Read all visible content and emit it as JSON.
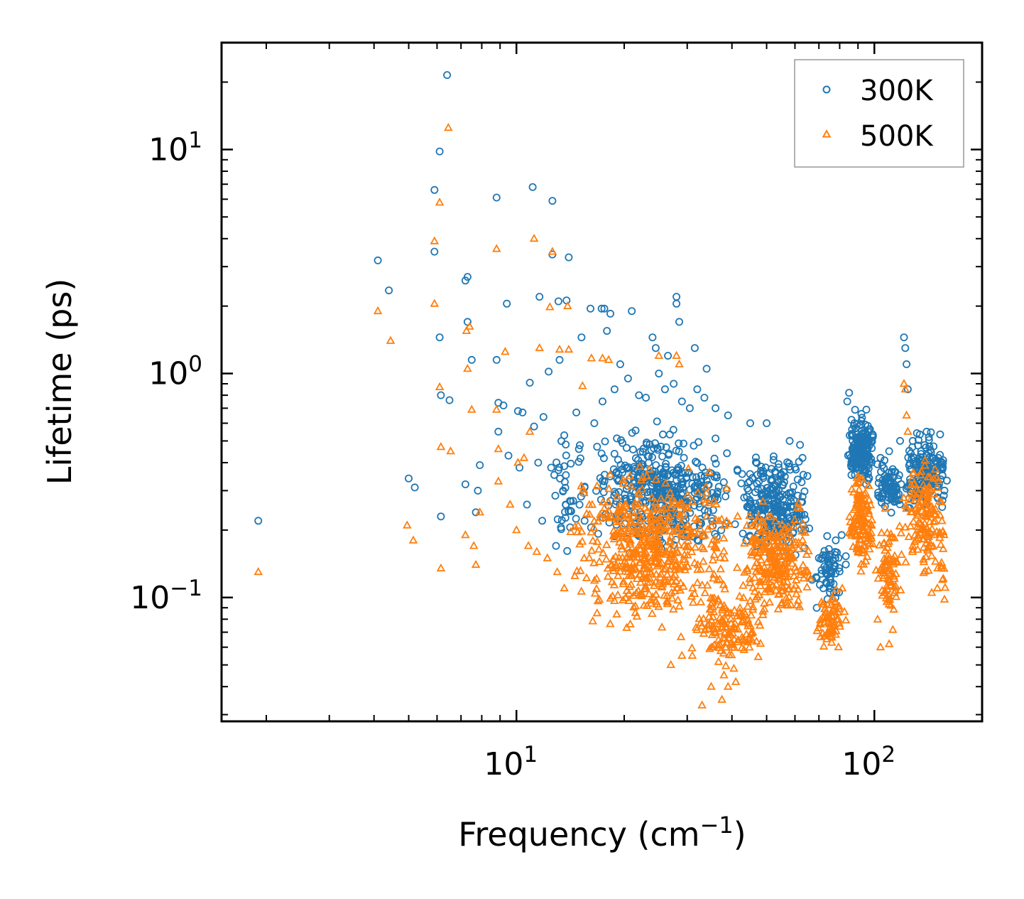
{
  "chart_data": {
    "type": "scatter",
    "xscale": "log",
    "yscale": "log",
    "xlim": [
      1.5,
      200
    ],
    "ylim": [
      0.028,
      30
    ],
    "xlabel": "Frequency (cm",
    "xlabel_sup": "−1",
    "xlabel_end": ")",
    "ylabel": "Lifetime (ps)",
    "x_ticks": [
      {
        "value": 10,
        "base": "10",
        "exp": "1"
      },
      {
        "value": 100,
        "base": "10",
        "exp": "2"
      }
    ],
    "y_ticks": [
      {
        "value": 0.1,
        "base": "10",
        "exp": "−1"
      },
      {
        "value": 1,
        "base": "10",
        "exp": "0"
      },
      {
        "value": 10,
        "base": "10",
        "exp": "1"
      }
    ],
    "legend_position": "top-right",
    "series": [
      {
        "name": "300K",
        "marker": "circle",
        "color": "#1f77b4",
        "points": [
          [
            1.9,
            0.22
          ],
          [
            4.1,
            3.2
          ],
          [
            4.4,
            2.35
          ],
          [
            5.0,
            0.34
          ],
          [
            5.2,
            0.31
          ],
          [
            5.9,
            6.6
          ],
          [
            5.9,
            3.5
          ],
          [
            6.1,
            9.8
          ],
          [
            6.1,
            1.45
          ],
          [
            6.15,
            0.8
          ],
          [
            6.15,
            0.23
          ],
          [
            6.4,
            21.5
          ],
          [
            6.5,
            0.76
          ],
          [
            7.2,
            2.6
          ],
          [
            7.3,
            2.7
          ],
          [
            7.3,
            1.7
          ],
          [
            7.5,
            1.15
          ],
          [
            7.2,
            0.32
          ],
          [
            7.7,
            0.24
          ],
          [
            7.8,
            0.3
          ],
          [
            7.9,
            0.39
          ],
          [
            8.8,
            6.1
          ],
          [
            8.8,
            1.15
          ],
          [
            8.9,
            0.74
          ],
          [
            8.9,
            0.55
          ],
          [
            9.2,
            0.72
          ],
          [
            9.4,
            2.05
          ],
          [
            10.1,
            0.68
          ],
          [
            10.4,
            0.67
          ],
          [
            10.9,
            0.91
          ],
          [
            11.1,
            6.8
          ],
          [
            11.2,
            0.58
          ],
          [
            11.6,
            2.2
          ],
          [
            11.9,
            0.64
          ],
          [
            12.3,
            1.02
          ],
          [
            12.6,
            5.9
          ],
          [
            12.6,
            3.4
          ],
          [
            13.1,
            2.1
          ],
          [
            13.2,
            1.15
          ],
          [
            13.6,
            0.53
          ],
          [
            13.8,
            2.12
          ],
          [
            14.0,
            3.3
          ],
          [
            14.7,
            0.67
          ],
          [
            15.2,
            1.45
          ],
          [
            16.1,
            1.95
          ],
          [
            17.3,
            1.95
          ],
          [
            17.6,
            1.95
          ],
          [
            17.9,
            1.55
          ],
          [
            18.3,
            1.85
          ],
          [
            21.0,
            1.9
          ],
          [
            24.0,
            1.45
          ],
          [
            24.5,
            1.3
          ],
          [
            26.5,
            1.2
          ],
          [
            28.0,
            2.2
          ],
          [
            28.0,
            2.05
          ],
          [
            28.5,
            1.7
          ],
          [
            31.5,
            1.3
          ],
          [
            34.0,
            1.05
          ],
          [
            39.0,
            0.65
          ],
          [
            45.0,
            0.6
          ],
          [
            50.0,
            0.6
          ],
          [
            58.0,
            0.5
          ],
          [
            62.0,
            0.48
          ],
          [
            9.5,
            0.43
          ],
          [
            10.2,
            0.38
          ],
          [
            11.5,
            0.4
          ],
          [
            12.5,
            0.38
          ],
          [
            13.5,
            0.3
          ],
          [
            10.7,
            0.26
          ],
          [
            11.8,
            0.22
          ],
          [
            12.9,
            0.17
          ],
          [
            14.4,
            0.27
          ],
          [
            15.5,
            0.22
          ],
          [
            16.5,
            0.6
          ],
          [
            17.4,
            0.75
          ],
          [
            18.8,
            0.85
          ],
          [
            19.5,
            1.1
          ],
          [
            20.5,
            0.95
          ],
          [
            22.0,
            0.8
          ],
          [
            23.0,
            0.78
          ],
          [
            25.0,
            1.0
          ],
          [
            26.0,
            0.85
          ],
          [
            27.5,
            0.9
          ],
          [
            29.0,
            0.75
          ],
          [
            30.5,
            0.7
          ],
          [
            32.0,
            0.85
          ],
          [
            33.5,
            0.78
          ],
          [
            36.0,
            0.7
          ],
          [
            84.0,
            0.75
          ],
          [
            85.0,
            0.82
          ],
          [
            88.0,
            0.6
          ],
          [
            92.0,
            0.66
          ],
          [
            95.0,
            0.69
          ],
          [
            98.0,
            0.5
          ],
          [
            104.0,
            0.42
          ],
          [
            110.0,
            0.45
          ],
          [
            118.0,
            0.5
          ],
          [
            121.0,
            1.45
          ],
          [
            122.0,
            1.3
          ],
          [
            123.0,
            1.1
          ],
          [
            124.0,
            0.85
          ],
          [
            128.0,
            0.5
          ],
          [
            135.0,
            0.45
          ],
          [
            140.0,
            0.55
          ],
          [
            142.0,
            0.52
          ],
          [
            145.0,
            0.42
          ],
          [
            150.0,
            0.28
          ],
          [
            155.0,
            0.35
          ],
          [
            157.0,
            0.3
          ],
          [
            60.0,
            0.38
          ],
          [
            63.0,
            0.42
          ],
          [
            67.0,
            0.12
          ],
          [
            69.0,
            0.09
          ],
          [
            72.0,
            0.11
          ],
          [
            75.0,
            0.14
          ],
          [
            78.0,
            0.18
          ],
          [
            81.0,
            0.19
          ],
          [
            70.0,
            0.15
          ]
        ],
        "clusters": [
          {
            "x": [
              16,
              40
            ],
            "y": [
              0.14,
              0.65
            ],
            "n": 420
          },
          {
            "x": [
              40,
              68
            ],
            "y": [
              0.13,
              0.5
            ],
            "n": 260
          },
          {
            "x": [
              12,
              16
            ],
            "y": [
              0.15,
              0.6
            ],
            "n": 40
          },
          {
            "x": [
              68,
              84
            ],
            "y": [
              0.09,
              0.2
            ],
            "n": 60
          },
          {
            "x": [
              84,
              100
            ],
            "y": [
              0.3,
              0.72
            ],
            "n": 180
          },
          {
            "x": [
              100,
              120
            ],
            "y": [
              0.22,
              0.45
            ],
            "n": 80
          },
          {
            "x": [
              120,
              160
            ],
            "y": [
              0.22,
              0.6
            ],
            "n": 170
          }
        ]
      },
      {
        "name": "500K",
        "marker": "triangle",
        "color": "#ff7f0e",
        "points": [
          [
            1.9,
            0.13
          ],
          [
            4.1,
            1.9
          ],
          [
            4.45,
            1.4
          ],
          [
            4.95,
            0.21
          ],
          [
            5.15,
            0.18
          ],
          [
            5.9,
            3.9
          ],
          [
            5.9,
            2.05
          ],
          [
            6.1,
            5.8
          ],
          [
            6.1,
            0.87
          ],
          [
            6.15,
            0.47
          ],
          [
            6.15,
            0.135
          ],
          [
            6.45,
            12.5
          ],
          [
            6.55,
            0.45
          ],
          [
            7.25,
            1.55
          ],
          [
            7.4,
            1.62
          ],
          [
            7.3,
            1.05
          ],
          [
            7.5,
            0.69
          ],
          [
            7.2,
            0.19
          ],
          [
            7.6,
            0.17
          ],
          [
            7.7,
            0.14
          ],
          [
            7.9,
            0.24
          ],
          [
            8.8,
            3.6
          ],
          [
            8.8,
            0.69
          ],
          [
            8.9,
            0.46
          ],
          [
            8.9,
            0.33
          ],
          [
            9.3,
            1.25
          ],
          [
            10.1,
            0.4
          ],
          [
            10.5,
            0.42
          ],
          [
            10.9,
            0.55
          ],
          [
            11.2,
            4.0
          ],
          [
            11.6,
            1.3
          ],
          [
            12.4,
            1.98
          ],
          [
            12.6,
            3.5
          ],
          [
            13.2,
            1.28
          ],
          [
            13.9,
            2.0
          ],
          [
            14.0,
            1.28
          ],
          [
            15.3,
            0.88
          ],
          [
            16.2,
            1.17
          ],
          [
            17.4,
            1.17
          ],
          [
            18.1,
            1.15
          ],
          [
            25.0,
            1.2
          ],
          [
            28.0,
            1.2
          ],
          [
            28.5,
            1.1
          ],
          [
            9.6,
            0.26
          ],
          [
            10.0,
            0.2
          ],
          [
            10.8,
            0.17
          ],
          [
            11.4,
            0.16
          ],
          [
            12.2,
            0.15
          ],
          [
            13.0,
            0.13
          ],
          [
            13.6,
            0.11
          ],
          [
            33.0,
            0.033
          ],
          [
            35.0,
            0.04
          ],
          [
            37.5,
            0.035
          ],
          [
            39.0,
            0.04
          ],
          [
            41.0,
            0.042
          ],
          [
            38.0,
            0.045
          ],
          [
            29.0,
            0.055
          ],
          [
            27.0,
            0.05
          ],
          [
            31.0,
            0.055
          ],
          [
            121.0,
            0.9
          ],
          [
            122.0,
            0.85
          ],
          [
            123.0,
            0.65
          ],
          [
            124.0,
            0.55
          ],
          [
            104.0,
            0.06
          ],
          [
            110.0,
            0.062
          ],
          [
            150.0,
            0.11
          ],
          [
            155.0,
            0.12
          ],
          [
            157.0,
            0.098
          ]
        ],
        "clusters": [
          {
            "x": [
              14,
              42
            ],
            "y": [
              0.06,
              0.45
            ],
            "n": 520
          },
          {
            "x": [
              30,
              50
            ],
            "y": [
              0.045,
              0.12
            ],
            "n": 140
          },
          {
            "x": [
              42,
              68
            ],
            "y": [
              0.07,
              0.3
            ],
            "n": 260
          },
          {
            "x": [
              68,
              84
            ],
            "y": [
              0.052,
              0.12
            ],
            "n": 70
          },
          {
            "x": [
              84,
              100
            ],
            "y": [
              0.12,
              0.42
            ],
            "n": 130
          },
          {
            "x": [
              100,
              120
            ],
            "y": [
              0.06,
              0.3
            ],
            "n": 80
          },
          {
            "x": [
              120,
              160
            ],
            "y": [
              0.1,
              0.5
            ],
            "n": 150
          }
        ]
      }
    ]
  }
}
